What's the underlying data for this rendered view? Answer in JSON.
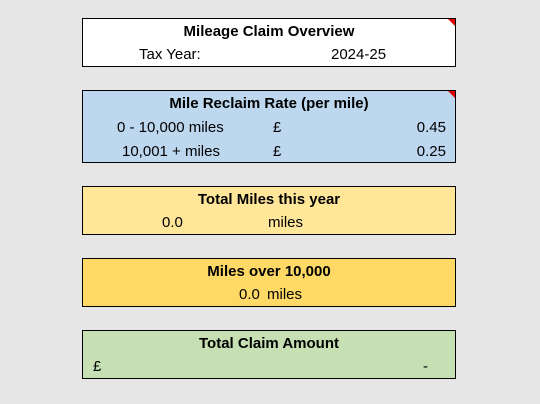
{
  "overview": {
    "title": "Mileage Claim Overview",
    "tax_year_label": "Tax Year:",
    "tax_year_value": "2024-25"
  },
  "rate": {
    "title": "Mile Reclaim Rate (per mile)",
    "rows": [
      {
        "band": "0 - 10,000 miles",
        "currency": "£",
        "value": "0.45"
      },
      {
        "band": "10,001 + miles",
        "currency": "£",
        "value": "0.25"
      }
    ]
  },
  "total_miles": {
    "title": "Total Miles this year",
    "value": "0.0",
    "unit": "miles"
  },
  "miles_over": {
    "title": "Miles over 10,000",
    "value": "0.0",
    "unit": "miles"
  },
  "claim": {
    "title": "Total Claim Amount",
    "currency": "£",
    "value": "-"
  },
  "colors": {
    "overview_bg": "#ffffff",
    "rate_bg": "#bdd7ee",
    "total_miles_bg": "#ffe699",
    "miles_over_bg": "#ffd966",
    "claim_bg": "#c6e0b4",
    "comment_indicator": "#e00000"
  }
}
